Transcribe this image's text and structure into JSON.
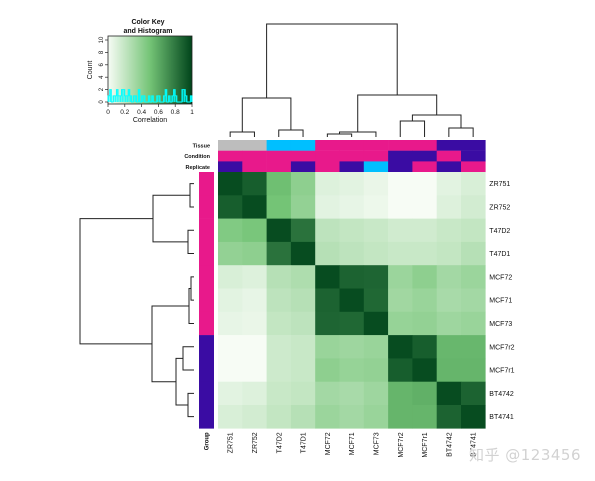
{
  "chart_data": {
    "type": "heatmap",
    "color_key": {
      "title_line1": "Color Key",
      "title_line2": "and Histogram",
      "xlabel": "Correlation",
      "ylabel": "Count",
      "x_ticks": [
        "0",
        "0.2",
        "0.4",
        "0.6",
        "0.8",
        "1"
      ],
      "y_ticks": [
        "0",
        "2",
        "4",
        "6",
        "8",
        "10"
      ],
      "low_color": "#f7fcf5",
      "high_color": "#00441b",
      "histogram_color": "#00ffff",
      "histogram_bars": [
        1,
        2,
        0,
        1,
        1,
        2,
        1,
        1,
        2,
        2,
        1,
        1,
        2,
        1,
        0,
        1,
        1,
        0,
        2,
        0,
        1,
        1,
        0,
        0,
        1,
        0,
        1,
        0,
        0,
        1,
        1,
        0,
        0,
        1,
        2,
        0,
        1,
        0,
        1,
        2,
        1,
        0,
        0,
        0,
        2,
        2,
        1,
        0,
        0,
        1
      ]
    },
    "annotation_rows": [
      {
        "label": "Tissue",
        "colors": [
          "#bdbdbd",
          "#bdbdbd",
          "#00bfff",
          "#00bfff",
          "#e8198b",
          "#e8198b",
          "#e8198b",
          "#e8198b",
          "#e8198b",
          "#3a0ca3",
          "#3a0ca3"
        ]
      },
      {
        "label": "Condition",
        "colors": [
          "#e8198b",
          "#e8198b",
          "#e8198b",
          "#e8198b",
          "#e8198b",
          "#e8198b",
          "#e8198b",
          "#3a0ca3",
          "#3a0ca3",
          "#e8198b",
          "#3a0ca3"
        ]
      },
      {
        "label": "Replicate",
        "colors": [
          "#3a0ca3",
          "#e8198b",
          "#e8198b",
          "#3a0ca3",
          "#e8198b",
          "#3a0ca3",
          "#00bfff",
          "#3a0ca3",
          "#e8198b",
          "#3a0ca3",
          "#e8198b"
        ]
      }
    ],
    "group_label": "Group",
    "group_colors": [
      "#e8198b",
      "#e8198b",
      "#e8198b",
      "#e8198b",
      "#e8198b",
      "#e8198b",
      "#e8198b",
      "#3a0ca3",
      "#3a0ca3",
      "#3a0ca3",
      "#3a0ca3"
    ],
    "col_labels": [
      "ZR751",
      "ZR752",
      "T47D2",
      "T47D1",
      "MCF72",
      "MCF71",
      "MCF73",
      "MCF7r2",
      "MCF7r1",
      "BT4742",
      "BT4741"
    ],
    "row_labels": [
      "ZR751",
      "ZR752",
      "T47D2",
      "T47D1",
      "MCF72",
      "MCF71",
      "MCF73",
      "MCF7r2",
      "MCF7r1",
      "BT4742",
      "BT4741"
    ],
    "values": [
      [
        0.97,
        0.9,
        0.52,
        0.4,
        0.1,
        0.08,
        0.05,
        0.0,
        0.0,
        0.08,
        0.12
      ],
      [
        0.9,
        0.97,
        0.5,
        0.38,
        0.08,
        0.06,
        0.04,
        0.0,
        0.0,
        0.1,
        0.14
      ],
      [
        0.45,
        0.48,
        0.97,
        0.82,
        0.22,
        0.2,
        0.18,
        0.15,
        0.15,
        0.18,
        0.2
      ],
      [
        0.38,
        0.4,
        0.82,
        0.97,
        0.25,
        0.22,
        0.2,
        0.18,
        0.18,
        0.2,
        0.25
      ],
      [
        0.12,
        0.1,
        0.25,
        0.28,
        0.97,
        0.88,
        0.87,
        0.35,
        0.4,
        0.32,
        0.35
      ],
      [
        0.08,
        0.06,
        0.22,
        0.25,
        0.88,
        0.97,
        0.86,
        0.33,
        0.36,
        0.3,
        0.32
      ],
      [
        0.06,
        0.05,
        0.2,
        0.22,
        0.87,
        0.86,
        0.97,
        0.37,
        0.38,
        0.34,
        0.36
      ],
      [
        0.0,
        0.0,
        0.16,
        0.18,
        0.36,
        0.34,
        0.36,
        0.97,
        0.9,
        0.55,
        0.55
      ],
      [
        0.0,
        0.0,
        0.16,
        0.18,
        0.4,
        0.37,
        0.38,
        0.9,
        0.97,
        0.56,
        0.56
      ],
      [
        0.08,
        0.1,
        0.18,
        0.2,
        0.32,
        0.3,
        0.34,
        0.56,
        0.58,
        0.97,
        0.88
      ],
      [
        0.12,
        0.14,
        0.2,
        0.25,
        0.35,
        0.32,
        0.36,
        0.56,
        0.56,
        0.88,
        0.97
      ]
    ],
    "col_order": [
      "ZR751",
      "ZR752",
      "T47D2",
      "T47D1",
      "MCF72",
      "MCF71",
      "MCF73",
      "MCF7r2",
      "MCF7r1",
      "BT4742",
      "BT4741"
    ],
    "row_order": [
      "ZR751",
      "ZR752",
      "T47D2",
      "T47D1",
      "MCF72",
      "MCF71",
      "MCF73",
      "MCF7r2",
      "MCF7r1",
      "BT4742",
      "BT4741"
    ],
    "grid": false
  },
  "watermark": "知乎 @123456"
}
